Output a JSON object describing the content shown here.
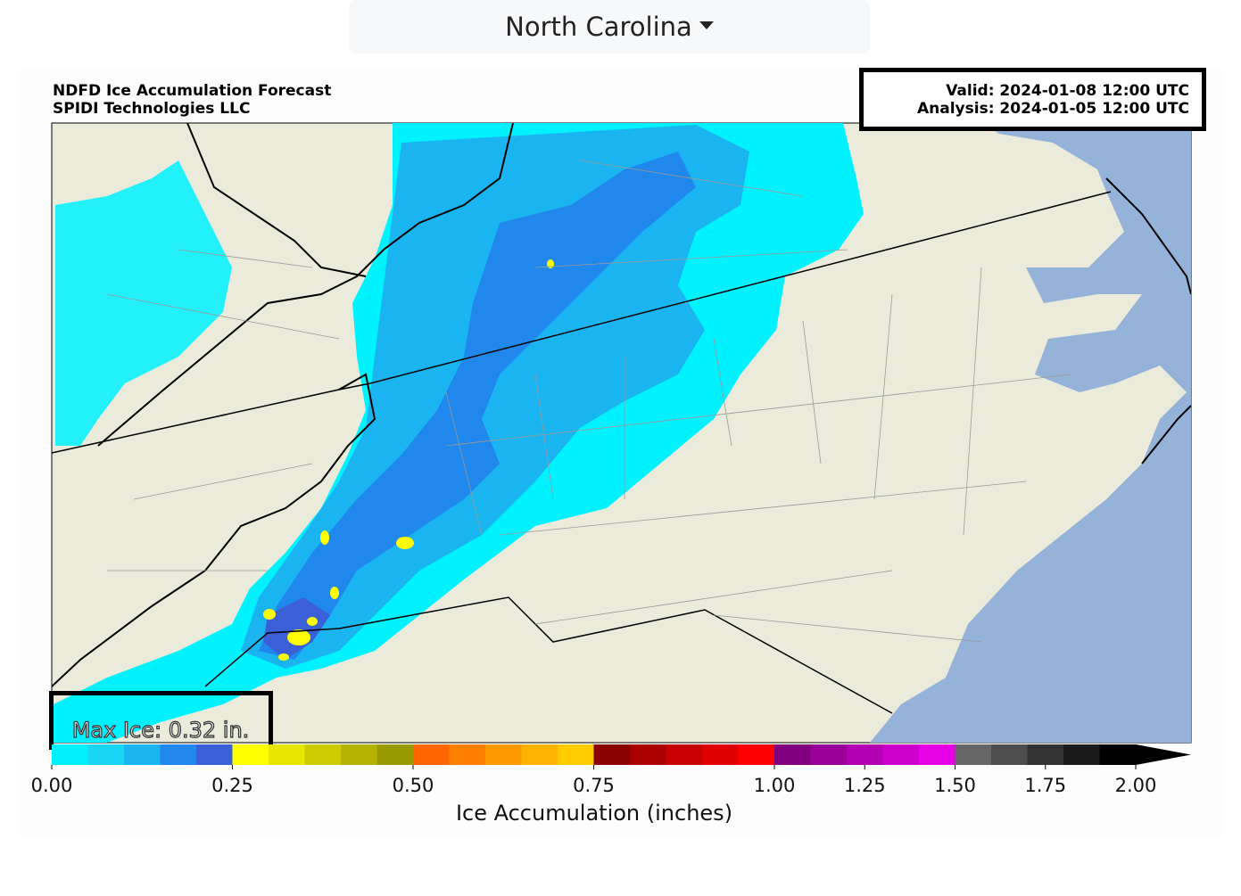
{
  "header": {
    "region": "North Carolina"
  },
  "figure": {
    "title": "NDFD Ice Accumulation Forecast",
    "source": "SPIDI Technologies LLC",
    "valid": "Valid: 2024-01-08 12:00 UTC",
    "analysis": "Analysis: 2024-01-05 12:00 UTC",
    "max_ice": "Max Ice: 0.32 in."
  },
  "colorbar": {
    "label": "Ice Accumulation (inches)",
    "levels": [
      0,
      0.05,
      0.1,
      0.15,
      0.2,
      0.25,
      0.3,
      0.35,
      0.4,
      0.45,
      0.5,
      0.55,
      0.6,
      0.65,
      0.7,
      0.75,
      0.8,
      0.85,
      0.9,
      0.95,
      1.0,
      1.1,
      1.2,
      1.3,
      1.4,
      1.5,
      1.6,
      1.7,
      1.8,
      1.9,
      2.0
    ],
    "colors": [
      "#00f2ff",
      "#19d6f6",
      "#1ab4f1",
      "#2088ec",
      "#3a5fd6",
      "#ffff00",
      "#e6e600",
      "#cccc00",
      "#b3b300",
      "#999900",
      "#ff6600",
      "#ff8000",
      "#ff9900",
      "#ffb300",
      "#ffcc00",
      "#8b0000",
      "#aa0000",
      "#c80000",
      "#e00000",
      "#ff0000",
      "#800080",
      "#990099",
      "#b300b3",
      "#cc00cc",
      "#e600e6",
      "#666666",
      "#4d4d4d",
      "#333333",
      "#1a1a1a",
      "#000000"
    ],
    "extend_color": "#000000",
    "ticks": [
      {
        "value": 0,
        "label": "0.00"
      },
      {
        "value": 0.25,
        "label": "0.25"
      },
      {
        "value": 0.5,
        "label": "0.50"
      },
      {
        "value": 0.75,
        "label": "0.75"
      },
      {
        "value": 1.0,
        "label": "1.00"
      },
      {
        "value": 1.25,
        "label": "1.25"
      },
      {
        "value": 1.5,
        "label": "1.50"
      },
      {
        "value": 1.75,
        "label": "1.75"
      },
      {
        "value": 2.0,
        "label": "2.00"
      }
    ]
  }
}
